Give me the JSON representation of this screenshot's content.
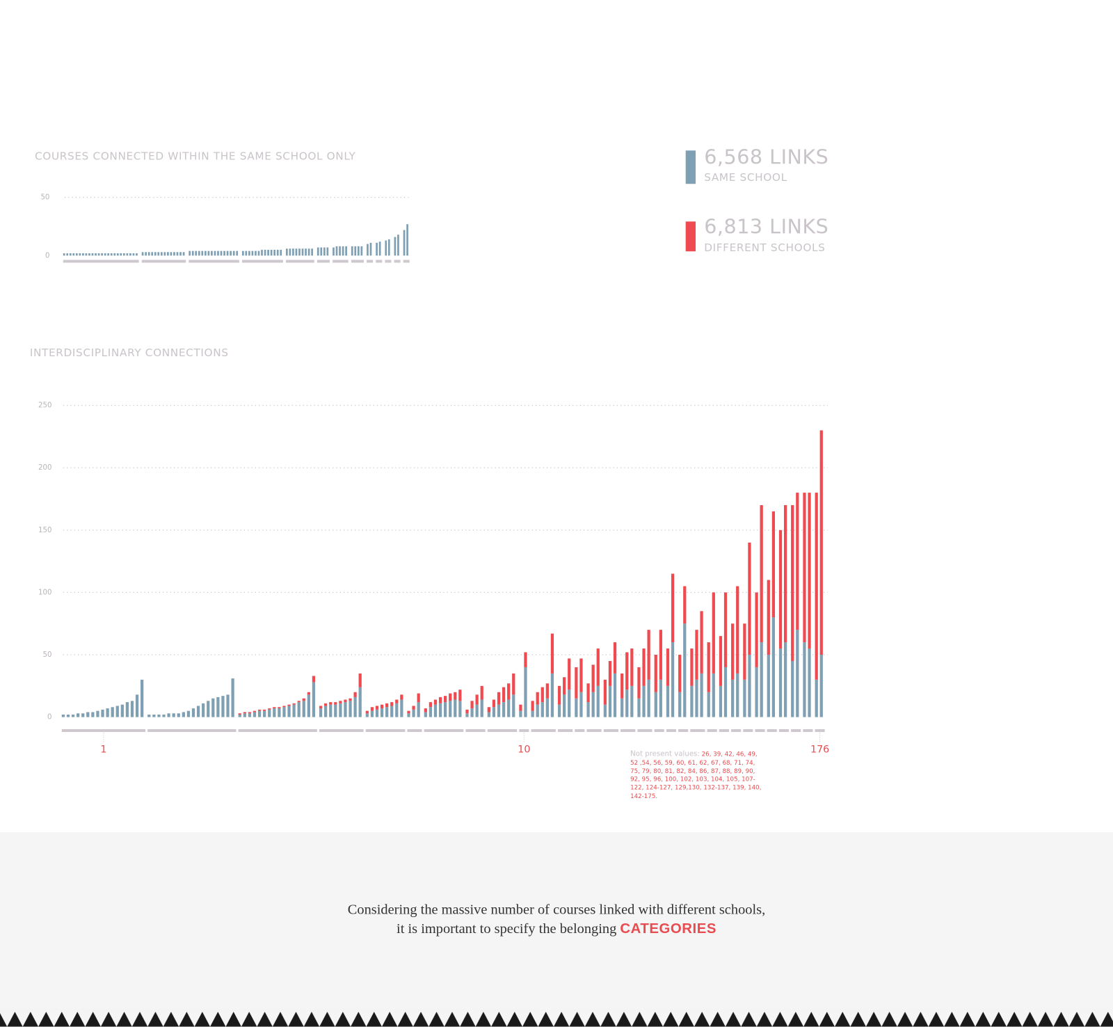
{
  "legend": [
    {
      "value": "6,568 LINKS",
      "label": "SAME SCHOOL",
      "color": "#7f9fb3"
    },
    {
      "value": "6,813 LINKS",
      "label": "DIFFERENT SCHOOLS",
      "color": "#ef4a4f"
    }
  ],
  "chart_data": [
    {
      "type": "grouped-bar",
      "title": "COURSES CONNECTED WITHIN THE SAME SCHOOL ONLY",
      "color": "#7f9fb3",
      "groups": [
        [
          2,
          2,
          2,
          2,
          2,
          2,
          2,
          2,
          2,
          2,
          2,
          2,
          2,
          2,
          2,
          2,
          2,
          2,
          2,
          2,
          2,
          2,
          2,
          2
        ],
        [
          3,
          3,
          3,
          3,
          3,
          3,
          3,
          3,
          3,
          3,
          3,
          3,
          3,
          3
        ],
        [
          4,
          4,
          4,
          4,
          4,
          4,
          4,
          4,
          4,
          4,
          4,
          4,
          4,
          4,
          4,
          4
        ],
        [
          4,
          4,
          4,
          4,
          4,
          4,
          5,
          5,
          5,
          5,
          5,
          5,
          5
        ],
        [
          6,
          6,
          6,
          6,
          6,
          6,
          6,
          6,
          6
        ],
        [
          7,
          7,
          7,
          7
        ],
        [
          7,
          8,
          8,
          8,
          8
        ],
        [
          8,
          8,
          8,
          8
        ],
        [
          10,
          11
        ],
        [
          11,
          12
        ],
        [
          13,
          14
        ],
        [
          16,
          18
        ],
        [
          22,
          27
        ]
      ],
      "ylim": [
        0,
        50
      ],
      "yticks": [
        0,
        50
      ],
      "grid": true
    },
    {
      "type": "stacked-grouped-bar",
      "title": "INTERDISCIPLINARY CONNECTIONS",
      "categories": [
        "1",
        null,
        null,
        null,
        null,
        null,
        null,
        null,
        null,
        "10",
        null,
        null,
        null,
        null,
        null,
        null,
        null,
        null,
        null,
        null,
        null,
        null,
        null,
        null,
        null,
        null,
        null,
        null,
        null,
        null,
        "176"
      ],
      "series": [
        {
          "color": "#7f9fb3",
          "groups": [
            [
              2,
              2,
              2,
              3,
              3,
              4,
              4,
              5,
              6,
              7,
              8,
              9,
              10,
              12,
              13,
              18,
              30
            ],
            [
              2,
              2,
              2,
              2,
              3,
              3,
              3,
              4,
              5,
              7,
              9,
              11,
              13,
              15,
              16,
              17,
              18,
              31
            ],
            [
              2,
              3,
              3,
              4,
              5,
              5,
              6,
              7,
              7,
              8,
              9,
              10,
              12,
              13,
              18,
              28
            ],
            [
              7,
              9,
              10,
              10,
              11,
              12,
              13,
              16,
              24
            ],
            [
              3,
              5,
              6,
              7,
              8,
              9,
              11,
              14
            ],
            [
              3,
              6,
              12
            ],
            [
              4,
              8,
              10,
              11,
              12,
              13,
              14,
              13
            ],
            [
              3,
              7,
              10,
              14
            ],
            [
              4,
              8,
              10,
              12,
              14,
              18
            ],
            [
              5,
              40
            ],
            [
              5,
              10,
              12,
              15,
              35
            ],
            [
              10,
              18,
              22
            ],
            [
              15,
              20
            ],
            [
              12,
              20,
              25
            ],
            [
              10,
              25,
              35
            ],
            [
              15,
              22,
              25
            ],
            [
              15,
              25,
              30
            ],
            [
              20,
              30
            ],
            [
              25,
              60
            ],
            [
              20,
              75
            ],
            [
              25,
              30,
              35
            ],
            [
              20,
              35
            ],
            [
              25,
              40
            ],
            [
              30,
              35
            ],
            [
              30,
              50
            ],
            [
              40,
              60
            ],
            [
              50,
              80
            ],
            [
              55,
              60
            ],
            [
              45,
              70
            ],
            [
              60,
              55
            ],
            [
              30,
              50
            ]
          ]
        },
        {
          "color": "#ef4a4f",
          "groups": [
            [
              0,
              0,
              0,
              0,
              0,
              0,
              0,
              0,
              0,
              0,
              0,
              0,
              0,
              0,
              0,
              0,
              0
            ],
            [
              0,
              0,
              0,
              0,
              0,
              0,
              0,
              0,
              0,
              0,
              0,
              0,
              0,
              0,
              0,
              0,
              0,
              0
            ],
            [
              1,
              1,
              1,
              1,
              1,
              1,
              1,
              1,
              1,
              1,
              1,
              1,
              1,
              2,
              2,
              5
            ],
            [
              2,
              2,
              2,
              2,
              2,
              2,
              2,
              4,
              11
            ],
            [
              2,
              3,
              3,
              3,
              3,
              3,
              3,
              4
            ],
            [
              2,
              3,
              7
            ],
            [
              3,
              4,
              4,
              5,
              5,
              6,
              6,
              9
            ],
            [
              3,
              6,
              8,
              11
            ],
            [
              4,
              6,
              10,
              12,
              13,
              17
            ],
            [
              5,
              12
            ],
            [
              8,
              10,
              12,
              12,
              32
            ],
            [
              15,
              14,
              25
            ],
            [
              25,
              27
            ],
            [
              15,
              22,
              30
            ],
            [
              20,
              20,
              25
            ],
            [
              20,
              30,
              30
            ],
            [
              25,
              30,
              40
            ],
            [
              30,
              40
            ],
            [
              30,
              55
            ],
            [
              30,
              30
            ],
            [
              30,
              40,
              50
            ],
            [
              40,
              65
            ],
            [
              40,
              60
            ],
            [
              45,
              70
            ],
            [
              45,
              90
            ],
            [
              60,
              110
            ],
            [
              60,
              85
            ],
            [
              95,
              110
            ],
            [
              125,
              110
            ],
            [
              120,
              125
            ],
            [
              150,
              180
            ]
          ]
        }
      ],
      "ylim": [
        0,
        250
      ],
      "yticks": [
        0,
        50,
        100,
        150,
        200,
        250
      ],
      "grid": true,
      "note": {
        "label": "Not present values:",
        "values": "26, 39, 42, 46, 49, 52 ,54, 56, 59, 60, 61, 62, 67, 68, 71, 74, 75, 79, 80, 81, 82, 84, 86, 87, 88, 89, 90, 92, 95, 96, 100, 102, 103, 104, 105, 107-122, 124-127, 129,130, 132-137, 139, 140, 142-175."
      }
    }
  ],
  "footer": {
    "line1": "Considering the massive number of courses linked with different schools,",
    "line2": "it is important to specify the belonging",
    "highlight": "CATEGORIES"
  }
}
